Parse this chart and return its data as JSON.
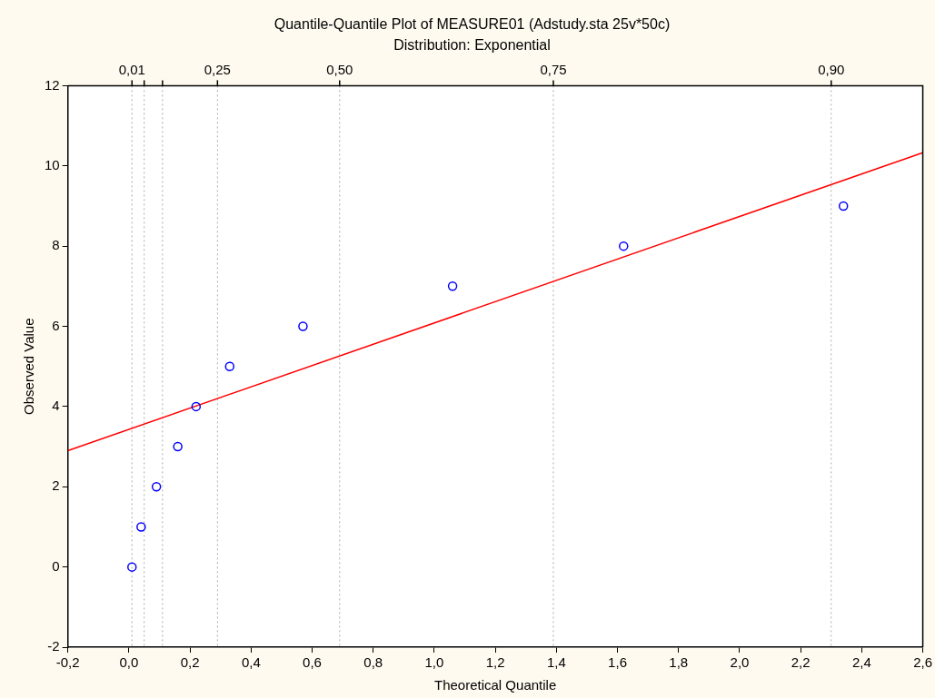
{
  "chart_data": {
    "type": "scatter",
    "title": "Quantile-Quantile Plot of MEASURE01 (Adstudy.sta 25v*50c)",
    "subtitle": "Distribution: Exponential",
    "xlabel": "Theoretical Quantile",
    "ylabel": "Observed Value",
    "xlim": [
      -0.2,
      2.6
    ],
    "xticks": [
      {
        "value": -0.2,
        "label": "-0,2"
      },
      {
        "value": 0,
        "label": "0,0"
      },
      {
        "value": 0.2,
        "label": "0,2"
      },
      {
        "value": 0.4,
        "label": "0,4"
      },
      {
        "value": 0.6,
        "label": "0,6"
      },
      {
        "value": 0.8,
        "label": "0,8"
      },
      {
        "value": 1,
        "label": "1,0"
      },
      {
        "value": 1.2,
        "label": "1,2"
      },
      {
        "value": 1.4,
        "label": "1,4"
      },
      {
        "value": 1.6,
        "label": "1,6"
      },
      {
        "value": 1.8,
        "label": "1,8"
      },
      {
        "value": 2,
        "label": "2,0"
      },
      {
        "value": 2.2,
        "label": "2,2"
      },
      {
        "value": 2.4,
        "label": "2,4"
      },
      {
        "value": 2.6,
        "label": "2,6"
      }
    ],
    "ref_lines": [
      {
        "axis": "x",
        "value": 0.01,
        "color": "#aaaaaa",
        "line_style": "dotted"
      },
      {
        "axis": "x",
        "value": 0.05,
        "color": "#aaaaaa",
        "line_style": "dotted"
      },
      {
        "axis": "x",
        "value": 0.11,
        "color": "#aaaaaa",
        "line_style": "dotted"
      },
      {
        "axis": "x",
        "value": 0.29,
        "color": "#aaaaaa",
        "line_style": "dotted"
      },
      {
        "axis": "x",
        "value": 0.69,
        "color": "#aaaaaa",
        "line_style": "dotted"
      },
      {
        "axis": "x",
        "value": 1.39,
        "color": "#aaaaaa",
        "line_style": "dotted"
      },
      {
        "axis": "x",
        "value": 2.3,
        "color": "#aaaaaa",
        "line_style": "dotted"
      }
    ],
    "annotations": [
      {
        "text": "0,01",
        "x": 0.01,
        "y": 12
      },
      {
        "text": "0,25",
        "x": 0.29,
        "y": 12
      },
      {
        "text": "0,50",
        "x": 0.69,
        "y": 12
      },
      {
        "text": "0,75",
        "x": 1.39,
        "y": 12
      },
      {
        "text": "0,90",
        "x": 2.3,
        "y": 12
      }
    ],
    "ylim": [
      -2,
      12
    ],
    "yticks": [
      -2,
      0,
      2,
      4,
      6,
      8,
      10,
      12
    ],
    "marker": "circle",
    "series": [
      {
        "type": "scatter",
        "color": "#0000ff",
        "x": [
          0.01,
          0.04,
          0.09,
          0.16,
          0.22,
          0.33,
          0.57,
          1.06,
          1.62,
          2.34
        ],
        "values": [
          0,
          1,
          2,
          3,
          4,
          5,
          6,
          7,
          8,
          9
        ]
      },
      {
        "type": "line",
        "color": "#ff0000",
        "marker": "none",
        "x": [
          -0.2,
          2.6
        ],
        "values": [
          2.9,
          10.33
        ]
      }
    ]
  }
}
